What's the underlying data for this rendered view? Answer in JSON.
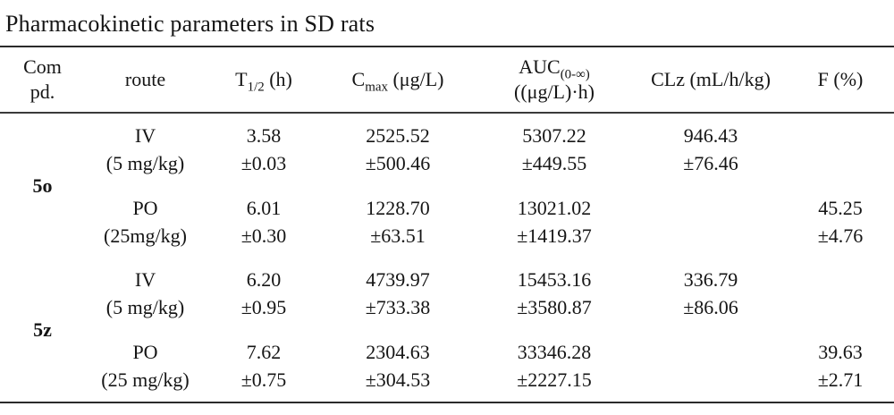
{
  "title": "Pharmacokinetic parameters in SD rats",
  "table": {
    "headers": {
      "compound_line1": "Com",
      "compound_line2": "pd.",
      "route": "route",
      "t12_base": "T",
      "t12_sub": "1/2",
      "t12_rest": " (h)",
      "cmax_base": "C",
      "cmax_sub": "max",
      "cmax_rest": " (μg/L)",
      "auc_base": "AUC",
      "auc_sub": "(0-∞)",
      "auc_line2": "((μg/L)·h)",
      "clz": "CLz (mL/h/kg)",
      "f": "F (%)"
    },
    "groups": [
      {
        "compound": "5o",
        "rows": [
          {
            "route": "IV",
            "dose": "(5 mg/kg)",
            "t12": "3.58",
            "t12_sd": "±0.03",
            "cmax": "2525.52",
            "cmax_sd": "±500.46",
            "auc": "5307.22",
            "auc_sd": "±449.55",
            "clz": "946.43",
            "clz_sd": "±76.46",
            "f": "",
            "f_sd": ""
          },
          {
            "route": "PO",
            "dose": "(25mg/kg)",
            "t12": "6.01",
            "t12_sd": "±0.30",
            "cmax": "1228.70",
            "cmax_sd": "±63.51",
            "auc": "13021.02",
            "auc_sd": "±1419.37",
            "clz": "",
            "clz_sd": "",
            "f": "45.25",
            "f_sd": "±4.76"
          }
        ]
      },
      {
        "compound": "5z",
        "rows": [
          {
            "route": "IV",
            "dose": "(5 mg/kg)",
            "t12": "6.20",
            "t12_sd": "±0.95",
            "cmax": "4739.97",
            "cmax_sd": "±733.38",
            "auc": "15453.16",
            "auc_sd": "±3580.87",
            "clz": "336.79",
            "clz_sd": "±86.06",
            "f": "",
            "f_sd": ""
          },
          {
            "route": "PO",
            "dose": "(25 mg/kg)",
            "t12": "7.62",
            "t12_sd": "±0.75",
            "cmax": "2304.63",
            "cmax_sd": "±304.53",
            "auc": "33346.28",
            "auc_sd": "±2227.15",
            "clz": "",
            "clz_sd": "",
            "f": "39.63",
            "f_sd": "±2.71"
          }
        ]
      }
    ]
  }
}
